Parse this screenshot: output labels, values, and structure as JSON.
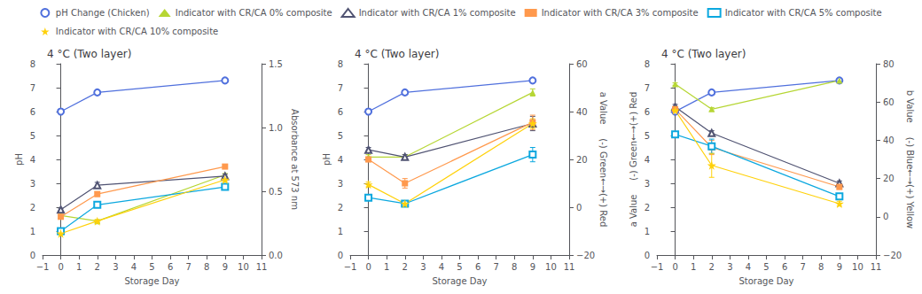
{
  "chart_data": [
    {
      "type": "line",
      "title": "4 °C (Two layer)",
      "x": [
        0,
        2,
        9
      ],
      "xlabel": "Storage Day",
      "ylabel": "pH",
      "y2label": "Absorbance at 573 nm",
      "xlim": [
        -1,
        11
      ],
      "xticks": [
        {
          "value": -1,
          "label": "−1"
        },
        0,
        1,
        2,
        3,
        4,
        5,
        6,
        7,
        8,
        9,
        10,
        11
      ],
      "ylim": [
        0,
        8
      ],
      "yticks": [
        0,
        1,
        2,
        3,
        4,
        5,
        6,
        7,
        8
      ],
      "y2lim": [
        0.0,
        1.5
      ],
      "y2ticks": [
        {
          "value": 0,
          "label": "0.0"
        },
        0.5,
        {
          "value": 1,
          "label": "1.0"
        },
        1.5
      ],
      "grid": false,
      "legend": "top",
      "series": [
        {
          "name": "pH Change (Chicken)",
          "marker": "open circle",
          "values": [
            6.0,
            6.8,
            7.3
          ],
          "errors": [
            0.05,
            0.05,
            0.05
          ]
        },
        {
          "name": "Indicator with CR/CA 0% composite",
          "marker": "triangle",
          "values": [
            1.65,
            1.42,
            3.35
          ],
          "errors": [
            0.05,
            0.06,
            0.06
          ]
        },
        {
          "name": "Indicator with CR/CA 1% composite",
          "marker": "open triangle",
          "values": [
            1.9,
            2.92,
            3.3
          ],
          "errors": [
            0.06,
            0.12,
            0.08
          ]
        },
        {
          "name": "Indicator with CR/CA 3% composite",
          "marker": "square",
          "values": [
            1.6,
            2.55,
            3.7
          ],
          "errors": [
            0.06,
            0.1,
            0.08
          ]
        },
        {
          "name": "Indicator with CR/CA 5% composite",
          "marker": "open square",
          "values": [
            1.0,
            2.1,
            2.85
          ],
          "errors": [
            0.06,
            0.12,
            0.1
          ]
        },
        {
          "name": "Indicator with CR/CA 10% composite",
          "marker": "star",
          "values": [
            0.9,
            1.42,
            3.15
          ],
          "errors": [
            0.05,
            0.06,
            0.08
          ]
        }
      ]
    },
    {
      "type": "line",
      "title": "4 °C (Two layer)",
      "x": [
        0,
        2,
        9
      ],
      "xlabel": "Storage Day",
      "ylabel": "pH",
      "y2label": "a Value     (-) Green←→(+) Red",
      "xlim": [
        -1,
        11
      ],
      "xticks": [
        {
          "value": -1,
          "label": "−1"
        },
        0,
        1,
        2,
        3,
        4,
        5,
        6,
        7,
        8,
        9,
        10,
        11
      ],
      "ylim": [
        0,
        8
      ],
      "yticks": [
        0,
        1,
        2,
        3,
        4,
        5,
        6,
        7,
        8
      ],
      "y2lim": [
        -20,
        60
      ],
      "y2ticks": [
        {
          "value": -20,
          "label": "−20"
        },
        0,
        20,
        40,
        60
      ],
      "grid": false,
      "legend": "top",
      "series": [
        {
          "name": "pH Change (Chicken)",
          "marker": "open circle",
          "values": [
            6.0,
            6.8,
            7.3
          ],
          "errors": [
            0.05,
            0.05,
            0.05
          ]
        },
        {
          "name": "Indicator with CR/CA 0% composite",
          "marker": "triangle",
          "values": [
            4.1,
            4.1,
            6.8
          ],
          "errors": [
            0.1,
            0.1,
            0.15
          ]
        },
        {
          "name": "Indicator with CR/CA 1% composite",
          "marker": "open triangle",
          "values": [
            4.4,
            4.1,
            5.5
          ],
          "errors": [
            0.1,
            0.1,
            0.3
          ]
        },
        {
          "name": "Indicator with CR/CA 3% composite",
          "marker": "square",
          "values": [
            4.0,
            3.0,
            5.55
          ],
          "errors": [
            0.1,
            0.2,
            0.3
          ]
        },
        {
          "name": "Indicator with CR/CA 5% composite",
          "marker": "open square",
          "values": [
            2.4,
            2.15,
            4.2
          ],
          "errors": [
            0.1,
            0.1,
            0.3
          ]
        },
        {
          "name": "Indicator with CR/CA 10% composite",
          "marker": "star",
          "values": [
            2.95,
            2.15,
            5.5
          ],
          "errors": [
            0.1,
            0.1,
            0.2
          ]
        }
      ]
    },
    {
      "type": "line",
      "title": "4 °C (Two layer)",
      "x": [
        0,
        2,
        9
      ],
      "xlabel": "Storage Day",
      "ylabel": "a Value     (-) Green←→(+) Red",
      "y2label": "b Value     (-) Blue←→(+) Yellow",
      "xlim": [
        -1,
        11
      ],
      "xticks": [
        {
          "value": -1,
          "label": "−1"
        },
        0,
        1,
        2,
        3,
        4,
        5,
        6,
        7,
        8,
        9,
        10,
        11
      ],
      "ylim": [
        0,
        8
      ],
      "yticks": [
        0,
        1,
        2,
        3,
        4,
        5,
        6,
        7,
        8
      ],
      "y2lim": [
        -20,
        80
      ],
      "y2ticks": [
        {
          "value": -20,
          "label": "−20"
        },
        0,
        20,
        40,
        60,
        80
      ],
      "grid": false,
      "legend": "top",
      "series": [
        {
          "name": "pH Change (Chicken)",
          "marker": "open circle",
          "values": [
            6.0,
            6.8,
            7.3
          ],
          "errors": [
            0.05,
            0.05,
            0.05
          ]
        },
        {
          "name": "Indicator with CR/CA 0% composite",
          "marker": "triangle",
          "values": [
            7.15,
            6.1,
            7.3
          ],
          "errors": [
            0.05,
            0.07,
            0.05
          ]
        },
        {
          "name": "Indicator with CR/CA 1% composite",
          "marker": "open triangle",
          "values": [
            6.2,
            5.1,
            3.0
          ],
          "errors": [
            0.1,
            0.1,
            0.1
          ]
        },
        {
          "name": "Indicator with CR/CA 3% composite",
          "marker": "square",
          "values": [
            6.1,
            4.5,
            2.85
          ],
          "errors": [
            0.1,
            0.3,
            0.1
          ]
        },
        {
          "name": "Indicator with CR/CA 5% composite",
          "marker": "open square",
          "values": [
            5.05,
            4.55,
            2.45
          ],
          "errors": [
            0.1,
            0.3,
            0.05
          ]
        },
        {
          "name": "Indicator with CR/CA 10% composite",
          "marker": "star",
          "values": [
            6.05,
            3.75,
            2.15
          ],
          "errors": [
            0.1,
            0.5,
            0.1
          ]
        }
      ]
    }
  ]
}
